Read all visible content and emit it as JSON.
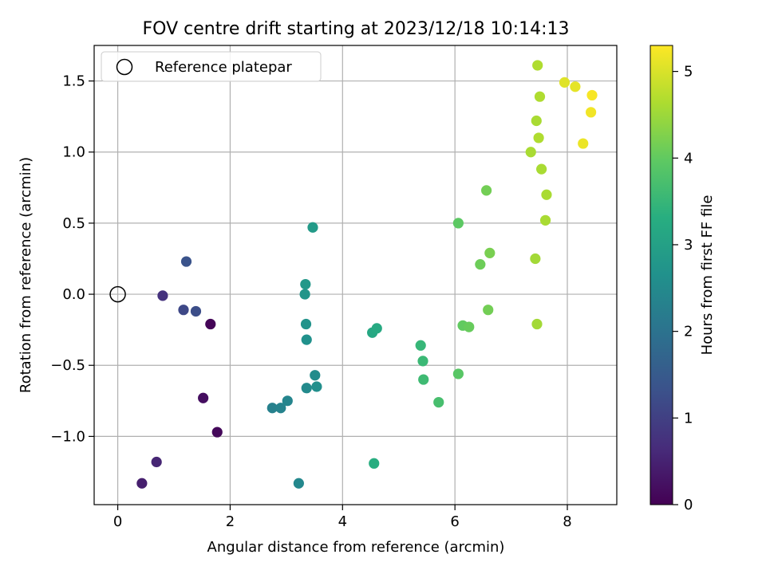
{
  "chart_data": {
    "type": "scatter",
    "title": "FOV centre drift starting at 2023/12/18 10:14:13",
    "xlabel": "Angular distance from reference (arcmin)",
    "ylabel": "Rotation from reference (arcmin)",
    "xlim": [
      -0.42,
      8.88
    ],
    "ylim": [
      -1.48,
      1.75
    ],
    "xticks": [
      0,
      2,
      4,
      6,
      8
    ],
    "xtick_labels": [
      "0",
      "2",
      "4",
      "6",
      "8"
    ],
    "yticks": [
      -1.0,
      -0.5,
      0.0,
      0.5,
      1.0,
      1.5
    ],
    "ytick_labels": [
      "−1.0",
      "−0.5",
      "0.0",
      "0.5",
      "1.0",
      "1.5"
    ],
    "grid": true,
    "legend": {
      "placement": "top-left",
      "entries": [
        "Reference platepar"
      ]
    },
    "reference_point": {
      "x": 0,
      "y": 0,
      "label": "Reference platepar"
    },
    "colorbar": {
      "label": "Hours from first FF file",
      "range": [
        0,
        5.3
      ],
      "ticks": [
        0,
        1,
        2,
        3,
        4,
        5
      ],
      "tick_labels": [
        "0",
        "1",
        "2",
        "3",
        "4",
        "5"
      ],
      "colormap": "viridis"
    },
    "points": [
      {
        "x": 1.65,
        "y": -0.21,
        "c": 0.05
      },
      {
        "x": 1.77,
        "y": -0.97,
        "c": 0.1
      },
      {
        "x": 1.52,
        "y": -0.73,
        "c": 0.2
      },
      {
        "x": 0.43,
        "y": -1.33,
        "c": 0.45
      },
      {
        "x": 0.69,
        "y": -1.18,
        "c": 0.55
      },
      {
        "x": 0.8,
        "y": -0.01,
        "c": 0.75
      },
      {
        "x": 1.17,
        "y": -0.11,
        "c": 1.15
      },
      {
        "x": 1.39,
        "y": -0.12,
        "c": 1.25
      },
      {
        "x": 1.22,
        "y": 0.23,
        "c": 1.35
      },
      {
        "x": 2.75,
        "y": -0.8,
        "c": 2.3
      },
      {
        "x": 2.9,
        "y": -0.8,
        "c": 2.35
      },
      {
        "x": 3.02,
        "y": -0.75,
        "c": 2.4
      },
      {
        "x": 3.22,
        "y": -1.33,
        "c": 2.45
      },
      {
        "x": 3.36,
        "y": -0.66,
        "c": 2.5
      },
      {
        "x": 3.51,
        "y": -0.57,
        "c": 2.55
      },
      {
        "x": 3.54,
        "y": -0.65,
        "c": 2.6
      },
      {
        "x": 3.36,
        "y": -0.32,
        "c": 2.65
      },
      {
        "x": 3.35,
        "y": -0.21,
        "c": 2.7
      },
      {
        "x": 3.33,
        "y": 0.0,
        "c": 2.75
      },
      {
        "x": 3.34,
        "y": 0.07,
        "c": 2.8
      },
      {
        "x": 3.47,
        "y": 0.47,
        "c": 2.85
      },
      {
        "x": 4.53,
        "y": -0.27,
        "c": 3.15
      },
      {
        "x": 4.61,
        "y": -0.24,
        "c": 3.2
      },
      {
        "x": 4.56,
        "y": -1.19,
        "c": 3.3
      },
      {
        "x": 5.39,
        "y": -0.36,
        "c": 3.5
      },
      {
        "x": 5.43,
        "y": -0.47,
        "c": 3.55
      },
      {
        "x": 5.44,
        "y": -0.6,
        "c": 3.6
      },
      {
        "x": 5.71,
        "y": -0.76,
        "c": 3.7
      },
      {
        "x": 6.06,
        "y": -0.56,
        "c": 3.9
      },
      {
        "x": 6.06,
        "y": 0.5,
        "c": 3.95
      },
      {
        "x": 6.14,
        "y": -0.22,
        "c": 4.0
      },
      {
        "x": 6.25,
        "y": -0.23,
        "c": 4.05
      },
      {
        "x": 6.45,
        "y": 0.21,
        "c": 4.1
      },
      {
        "x": 6.56,
        "y": 0.73,
        "c": 4.15
      },
      {
        "x": 6.59,
        "y": -0.11,
        "c": 4.15
      },
      {
        "x": 6.62,
        "y": 0.29,
        "c": 4.2
      },
      {
        "x": 7.43,
        "y": 0.25,
        "c": 4.55
      },
      {
        "x": 7.46,
        "y": -0.21,
        "c": 4.55
      },
      {
        "x": 7.35,
        "y": 1.0,
        "c": 4.6
      },
      {
        "x": 7.45,
        "y": 1.22,
        "c": 4.6
      },
      {
        "x": 7.47,
        "y": 1.61,
        "c": 4.65
      },
      {
        "x": 7.49,
        "y": 1.1,
        "c": 4.65
      },
      {
        "x": 7.51,
        "y": 1.39,
        "c": 4.65
      },
      {
        "x": 7.54,
        "y": 0.88,
        "c": 4.6
      },
      {
        "x": 7.61,
        "y": 0.52,
        "c": 4.6
      },
      {
        "x": 7.63,
        "y": 0.7,
        "c": 4.6
      },
      {
        "x": 7.95,
        "y": 1.49,
        "c": 5.05
      },
      {
        "x": 8.14,
        "y": 1.46,
        "c": 5.1
      },
      {
        "x": 8.28,
        "y": 1.06,
        "c": 5.15
      },
      {
        "x": 8.42,
        "y": 1.28,
        "c": 5.2
      },
      {
        "x": 8.44,
        "y": 1.4,
        "c": 5.25
      }
    ]
  }
}
